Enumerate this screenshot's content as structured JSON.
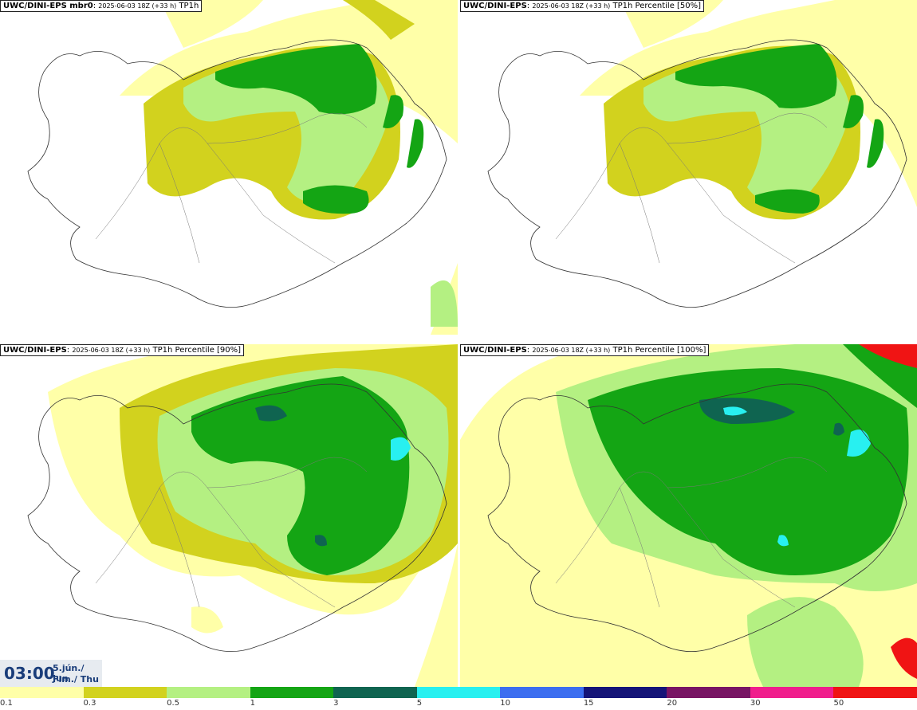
{
  "panels": [
    {
      "model": "UWC/DINI-EPS mbr0",
      "run": "2025-06-03 18Z (+33 h)",
      "field": "TP1h"
    },
    {
      "model": "UWC/DINI-EPS",
      "run": "2025-06-03 18Z (+33 h)",
      "field": "TP1h Percentile [50%]"
    },
    {
      "model": "UWC/DINI-EPS",
      "run": "2025-06-03 18Z (+33 h)",
      "field": "TP1h Percentile [90%]"
    },
    {
      "model": "UWC/DINI-EPS",
      "run": "2025-06-03 18Z (+33 h)",
      "field": "TP1h Percentile [100%]"
    }
  ],
  "valid_time": {
    "time": "03:00",
    "date_line1": "5.jún./ Jun",
    "date_line2": "Fim./ Thu"
  },
  "legend": {
    "ticks": [
      "0.1",
      "0.3",
      "0.5",
      "1",
      "3",
      "5",
      "10",
      "15",
      "20",
      "30",
      "50"
    ],
    "colors": [
      "#ffffa8",
      "#d2d21e",
      "#b4f082",
      "#14a514",
      "#0f6450",
      "#28f0f0",
      "#3c6ef0",
      "#141478",
      "#781464",
      "#f01e8c",
      "#f01414"
    ]
  },
  "palette": {
    "land_outline": "#333333",
    "roads": "#777777",
    "light": "#ffffa8",
    "olive": "#d2d21e",
    "lightgreen": "#b4f082",
    "green": "#14a514",
    "darkgreen": "#0f6450",
    "cyan": "#28f0f0"
  }
}
